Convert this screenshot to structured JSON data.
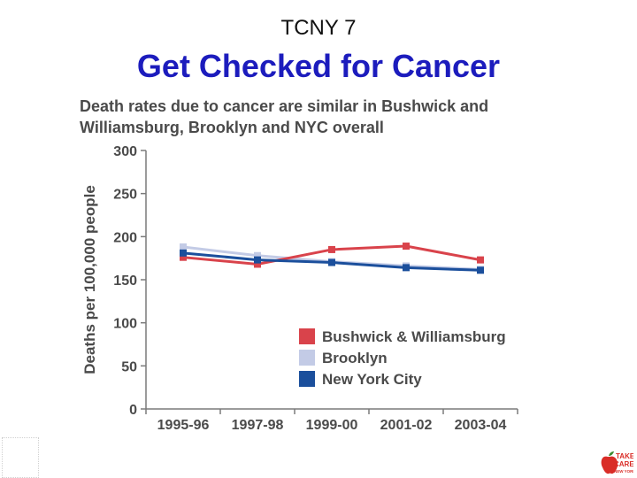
{
  "slide": {
    "number_label": "TCNY 7",
    "title": "Get Checked for Cancer"
  },
  "logo": {
    "line1": "TAKE",
    "line2": "CARE",
    "line3": "NEW YORK",
    "colors": {
      "red": "#d92d27",
      "green": "#3c8a2e"
    }
  },
  "chart_data": {
    "type": "line",
    "title": "Death rates due to cancer are similar in Bushwick and Williamsburg, Brooklyn and NYC overall",
    "title_lines": [
      "Death rates due to cancer are similar in Bushwick and",
      "Williamsburg, Brooklyn and NYC overall"
    ],
    "xlabel": "",
    "ylabel": "Deaths per 100,000 people",
    "ylim": [
      0,
      300
    ],
    "yticks": [
      0,
      50,
      100,
      150,
      200,
      250,
      300
    ],
    "categories": [
      "1995-96",
      "1997-98",
      "1999-00",
      "2001-02",
      "2003-04"
    ],
    "series": [
      {
        "name": "Bushwick & Williamsburg",
        "color": "#d9434b",
        "values": [
          176,
          168,
          185,
          189,
          173
        ]
      },
      {
        "name": "Brooklyn",
        "color": "#c3cbe6",
        "values": [
          188,
          178,
          171,
          166,
          162
        ]
      },
      {
        "name": "New York City",
        "color": "#1b4f9c",
        "values": [
          181,
          173,
          170,
          164,
          161
        ]
      }
    ],
    "legend_position": "lower-right",
    "grid": false
  }
}
